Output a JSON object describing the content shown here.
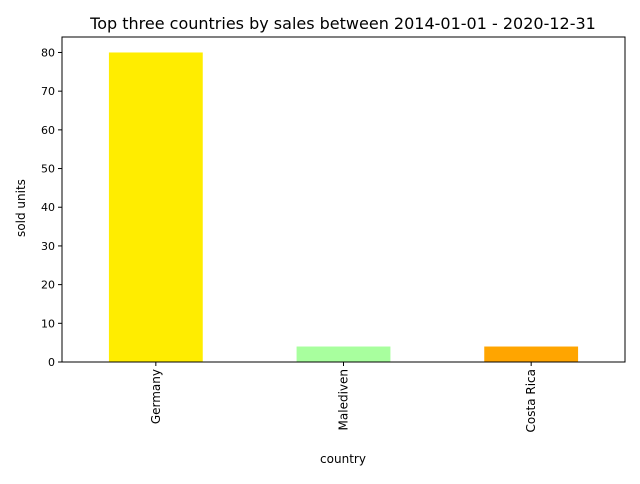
{
  "chart_data": {
    "type": "bar",
    "title": "Top three countries by sales between 2014-01-01 - 2020-12-31",
    "xlabel": "country",
    "ylabel": "sold units",
    "categories": [
      "Germany",
      "Malediven",
      "Costa Rica"
    ],
    "values": [
      80,
      4,
      4
    ],
    "bar_colors": [
      "#ffed00",
      "#a8ff9e",
      "#ffa500"
    ],
    "ylim": [
      0,
      84
    ],
    "yticks": [
      0,
      10,
      20,
      30,
      40,
      50,
      60,
      70,
      80
    ],
    "grid": false,
    "legend": "none"
  }
}
